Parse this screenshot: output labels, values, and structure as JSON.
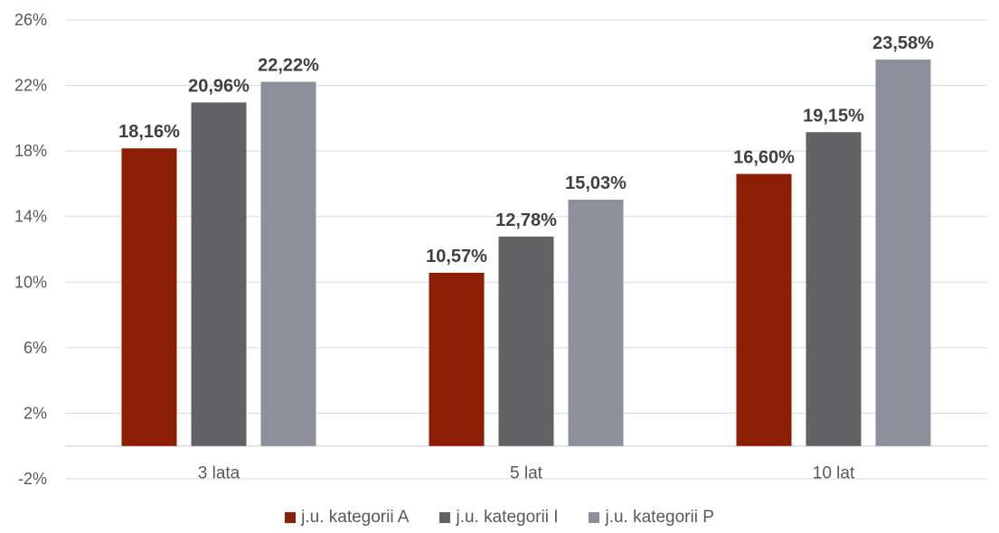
{
  "chart_data": {
    "type": "bar",
    "categories": [
      "3 lata",
      "5 lat",
      "10 lat"
    ],
    "series": [
      {
        "name": "j.u. kategorii A",
        "color": "#8B1E04",
        "values": [
          18.16,
          10.57,
          16.6
        ],
        "labels": [
          "18,16%",
          "10,57%",
          "16,60%"
        ]
      },
      {
        "name": "j.u. kategorii I",
        "color": "#606264",
        "values": [
          20.96,
          12.78,
          19.15
        ],
        "labels": [
          "20,96%",
          "12,78%",
          "19,15%"
        ]
      },
      {
        "name": "j.u. kategorii P",
        "color": "#8C909B",
        "values": [
          22.22,
          15.03,
          23.58
        ],
        "labels": [
          "22,22%",
          "15,03%",
          "23,58%"
        ]
      }
    ],
    "yticks": [
      -2,
      2,
      6,
      10,
      14,
      18,
      22,
      26
    ],
    "ytick_labels": [
      "-2%",
      "2%",
      "6%",
      "10%",
      "14%",
      "18%",
      "22%",
      "26%"
    ],
    "ylim": [
      -2,
      26
    ],
    "grid": true,
    "legend_position": "bottom",
    "title": "",
    "xlabel": "",
    "ylabel": ""
  }
}
